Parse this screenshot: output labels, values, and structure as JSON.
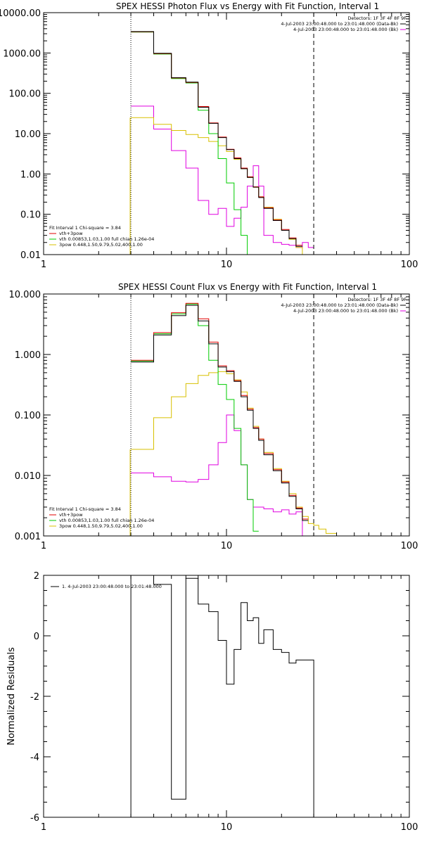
{
  "chart_data": [
    {
      "type": "line",
      "step": true,
      "title": "SPEX HESSI Photon Flux vs Energy with Fit Function, Interval 1",
      "xscale": "log",
      "yscale": "log",
      "xlim": [
        1,
        100
      ],
      "ylim": [
        0.01,
        10000
      ],
      "x_ticks": [
        "1",
        "10",
        "100"
      ],
      "y_ticks": [
        "0.01",
        "0.10",
        "1.00",
        "10.00",
        "100.00",
        "1000.00",
        "10000.00"
      ],
      "x_edges": [
        3,
        4,
        5,
        6,
        7,
        8,
        9,
        10,
        11,
        12,
        13,
        14,
        15,
        16,
        18,
        20,
        22,
        24,
        26,
        28,
        30,
        32
      ],
      "detectors_text": "Detectors: 1F 3F 4F 8F 9F",
      "legend_top": [
        {
          "text": "4-Jul-2003 23:00:48.000 to 23:01:48.000 (Data-Bk)",
          "color": "#000000"
        },
        {
          "text": "4-Jul-2003 23:00:48.000 to 23:01:48.000 (Bk)",
          "color": "#e000e0"
        }
      ],
      "fit_info": "Fit Interval 1    Chi-square = 3.84",
      "legend_bottom": [
        {
          "text": "vth+3pow",
          "color": "#e00000"
        },
        {
          "text": "vth 0.00853,1.03,1.00  full chian 1.26e-04",
          "color": "#00cc00"
        },
        {
          "text": "3pow 0.448,1.50,9.79,5.02,400,1.00",
          "color": "#d8c000"
        }
      ],
      "series": [
        {
          "name": "Data-Bk",
          "color": "#000000",
          "values": [
            3400,
            980,
            245,
            190,
            45,
            18,
            8,
            4,
            2.4,
            1.35,
            0.82,
            0.47,
            0.26,
            0.14,
            0.07,
            0.04,
            0.025,
            0.016
          ]
        },
        {
          "name": "vth+3pow",
          "color": "#e00000",
          "values": [
            3350,
            960,
            240,
            186,
            47,
            18.5,
            8.2,
            4.1,
            2.5,
            1.4,
            0.85,
            0.48,
            0.27,
            0.145,
            0.072,
            0.042,
            0.026,
            0.017
          ]
        },
        {
          "name": "vth",
          "color": "#00cc00",
          "values": [
            3300,
            940,
            232,
            180,
            38,
            10,
            2.4,
            0.6,
            0.13,
            0.03,
            0.008
          ]
        },
        {
          "name": "3pow",
          "color": "#d8c000",
          "values": [
            25,
            17,
            12,
            9.5,
            8,
            6.4,
            5,
            3.6,
            2.3,
            1.35,
            0.82,
            0.47,
            0.27,
            0.15,
            0.075,
            0.04,
            0.024,
            0.015,
            0.01,
            0.007
          ]
        },
        {
          "name": "Bk",
          "color": "#e000e0",
          "values": [
            48,
            13,
            3.8,
            1.4,
            0.22,
            0.1,
            0.14,
            0.05,
            0.08,
            0.15,
            0.5,
            1.6,
            0.5,
            0.03,
            0.02,
            0.018,
            0.017,
            0.015,
            0.02,
            0.015
          ]
        }
      ]
    },
    {
      "type": "line",
      "step": true,
      "title": "SPEX HESSI Count Flux vs Energy with Fit Function, Interval 1",
      "xscale": "log",
      "yscale": "log",
      "xlim": [
        1,
        100
      ],
      "ylim": [
        0.001,
        10
      ],
      "x_ticks": [
        "1",
        "10",
        "100"
      ],
      "y_ticks": [
        "0.001",
        "0.010",
        "0.100",
        "1.000",
        "10.000"
      ],
      "x_edges": [
        3,
        4,
        5,
        6,
        7,
        8,
        9,
        10,
        11,
        12,
        13,
        14,
        15,
        16,
        18,
        20,
        22,
        24,
        26,
        28,
        30,
        32,
        35,
        40
      ],
      "detectors_text": "Detectors: 1F 3F 4F 8F 9F",
      "legend_top": [
        {
          "text": "4-Jul-2003 23:00:48.000 to 23:01:48.000 (Data-Bk)",
          "color": "#000000"
        },
        {
          "text": "4-Jul-2003 23:00:48.000 to 23:01:48.000 (Bk)",
          "color": "#e000e0"
        }
      ],
      "fit_info": "Fit Interval 1    Chi-square = 3.84",
      "legend_bottom": [
        {
          "text": "vth+3pow",
          "color": "#e00000"
        },
        {
          "text": "vth 0.00853,1.03,1.00  full chian 1.26e-04",
          "color": "#00cc00"
        },
        {
          "text": "3pow 0.448,1.50,9.79,5.02,400,1.00",
          "color": "#d8c000"
        }
      ],
      "series": [
        {
          "name": "Data-Bk",
          "color": "#000000",
          "values": [
            0.75,
            2.1,
            4.4,
            6.5,
            3.6,
            1.5,
            0.62,
            0.52,
            0.36,
            0.2,
            0.12,
            0.06,
            0.038,
            0.022,
            0.012,
            0.0075,
            0.0045,
            0.0028,
            0.0018
          ]
        },
        {
          "name": "vth+3pow",
          "color": "#e00000",
          "values": [
            0.8,
            2.3,
            4.9,
            7.0,
            3.9,
            1.6,
            0.65,
            0.54,
            0.37,
            0.21,
            0.125,
            0.062,
            0.04,
            0.023,
            0.0125,
            0.0078,
            0.0047,
            0.0029,
            0.0019
          ]
        },
        {
          "name": "vth",
          "color": "#00cc00",
          "values": [
            0.78,
            2.2,
            4.7,
            6.8,
            3.0,
            0.8,
            0.32,
            0.18,
            0.06,
            0.015,
            0.004,
            0.0012
          ]
        },
        {
          "name": "3pow",
          "color": "#d8c000",
          "values": [
            0.027,
            0.09,
            0.2,
            0.33,
            0.45,
            0.5,
            0.52,
            0.48,
            0.38,
            0.24,
            0.13,
            0.065,
            0.04,
            0.024,
            0.013,
            0.008,
            0.005,
            0.003,
            0.0021,
            0.0016,
            0.0015,
            0.0013,
            0.0011,
            0.001
          ]
        },
        {
          "name": "Bk",
          "color": "#e000e0",
          "values": [
            0.011,
            0.0095,
            0.008,
            0.0078,
            0.0086,
            0.015,
            0.035,
            0.1,
            0.055,
            0.015,
            0.004,
            0.003,
            0.003,
            0.0028,
            0.0025,
            0.0027,
            0.0023,
            0.0025,
            0.001
          ]
        }
      ]
    },
    {
      "type": "line",
      "step": true,
      "title": "",
      "ylabel": "Normalized Residuals",
      "xscale": "log",
      "xlim": [
        1,
        100
      ],
      "ylim": [
        -6,
        2
      ],
      "x_ticks": [
        "1",
        "10",
        "100"
      ],
      "y_ticks": [
        "-6",
        "-4",
        "-2",
        "0",
        "2"
      ],
      "legend": [
        {
          "text": "1.  4-Jul-2003 23:00:48.000 to 23:01:48.000",
          "color": "#000000"
        }
      ],
      "x_edges": [
        3,
        4,
        5,
        6,
        7,
        8,
        9,
        10,
        11,
        12,
        13,
        14,
        15,
        16,
        18,
        20,
        22,
        24,
        26,
        28,
        30
      ],
      "series": [
        {
          "name": "residuals",
          "color": "#000000",
          "values": [
            2.0,
            1.7,
            -5.4,
            1.9,
            1.05,
            0.8,
            -0.15,
            -1.6,
            -0.45,
            1.1,
            0.5,
            0.6,
            -0.25,
            0.2,
            -0.45,
            -0.55,
            -0.9,
            -0.8,
            -0.8,
            -0.8
          ]
        }
      ]
    }
  ]
}
